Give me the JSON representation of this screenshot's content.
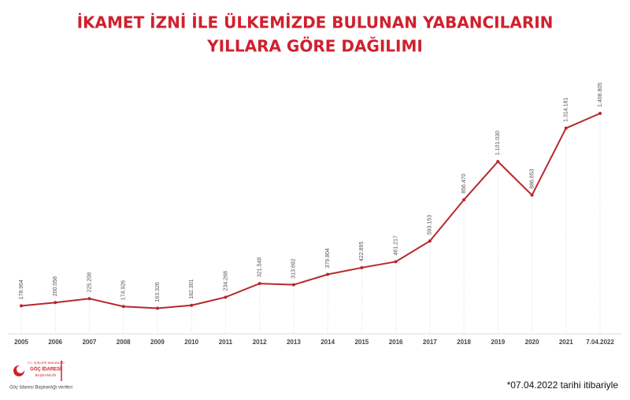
{
  "chart_data": {
    "type": "line",
    "title_lines": [
      "İKAMET İZNİ İLE ÜLKEMİZDE BULUNAN YABANCILARIN",
      "YILLARA GÖRE DAĞILIMI"
    ],
    "categories": [
      "2005",
      "2006",
      "2007",
      "2008",
      "2009",
      "2010",
      "2011",
      "2012",
      "2013",
      "2014",
      "2015",
      "2016",
      "2017",
      "2018",
      "2019",
      "2020",
      "2021",
      "7.04.2022"
    ],
    "values": [
      178964,
      200058,
      225208,
      174926,
      163326,
      182301,
      234268,
      321548,
      313692,
      379804,
      422895,
      461217,
      593153,
      856470,
      1101030,
      886653,
      1314181,
      1408805
    ],
    "value_labels": [
      "178.964",
      "200.058",
      "225.208",
      "174.926",
      "163.326",
      "182.301",
      "234.268",
      "321.548",
      "313.692",
      "379.804",
      "422.895",
      "461.217",
      "593.153",
      "856.470",
      "1.101.030",
      "886.653",
      "1.314.181",
      "1.408.805"
    ],
    "color": "#b7282e",
    "footnote": "*07.04.2022 tarihi itibariyle",
    "logo": {
      "ministry": "T.C. İÇİŞLERİ BAKANLIĞI",
      "name": "GÖÇ İDARESİ",
      "name2": "BAŞKANLIĞI",
      "source": "Göç İdaresi Başkanlığı verileri."
    }
  }
}
